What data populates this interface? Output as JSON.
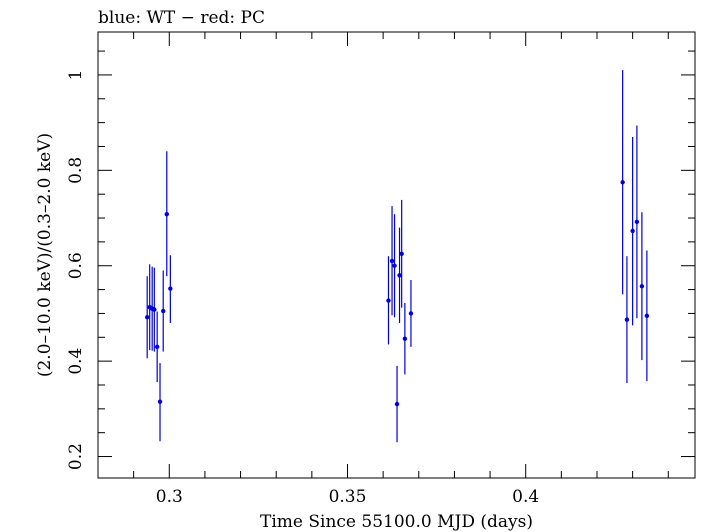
{
  "chart_data": {
    "type": "scatter",
    "title": "blue: WT − red: PC",
    "xlabel": "Time Since 55100.0 MJD (days)",
    "ylabel": "(2.0–10.0 keV)/(0.3–2.0 keV)",
    "xlim": [
      0.28,
      0.4475
    ],
    "ylim": [
      0.155,
      1.09
    ],
    "x_ticks": [
      0.3,
      0.35,
      0.4
    ],
    "x_tick_labels": [
      "0.3",
      "0.35",
      "0.4"
    ],
    "y_ticks": [
      0.2,
      0.4,
      0.6,
      0.8,
      1.0
    ],
    "y_tick_labels": [
      "0.2",
      "0.4",
      "0.6",
      "0.8",
      "1"
    ],
    "grid": false,
    "colors": {
      "WT": "#0000dd",
      "PC": "#dd0000",
      "axis": "#000000"
    },
    "series": [
      {
        "name": "WT",
        "points": [
          {
            "x": 0.2938,
            "y": 0.492,
            "ylo": 0.406,
            "yhi": 0.578
          },
          {
            "x": 0.2945,
            "y": 0.513,
            "ylo": 0.423,
            "yhi": 0.603
          },
          {
            "x": 0.2952,
            "y": 0.51,
            "ylo": 0.422,
            "yhi": 0.598
          },
          {
            "x": 0.2958,
            "y": 0.508,
            "ylo": 0.42,
            "yhi": 0.596
          },
          {
            "x": 0.2966,
            "y": 0.43,
            "ylo": 0.356,
            "yhi": 0.504
          },
          {
            "x": 0.2974,
            "y": 0.315,
            "ylo": 0.232,
            "yhi": 0.396
          },
          {
            "x": 0.2983,
            "y": 0.505,
            "ylo": 0.42,
            "yhi": 0.59
          },
          {
            "x": 0.2993,
            "y": 0.708,
            "ylo": 0.578,
            "yhi": 0.84
          },
          {
            "x": 0.3003,
            "y": 0.552,
            "ylo": 0.48,
            "yhi": 0.622
          },
          {
            "x": 0.3615,
            "y": 0.527,
            "ylo": 0.435,
            "yhi": 0.62
          },
          {
            "x": 0.3625,
            "y": 0.61,
            "ylo": 0.496,
            "yhi": 0.725
          },
          {
            "x": 0.3632,
            "y": 0.6,
            "ylo": 0.492,
            "yhi": 0.708
          },
          {
            "x": 0.3639,
            "y": 0.31,
            "ylo": 0.23,
            "yhi": 0.39
          },
          {
            "x": 0.3646,
            "y": 0.58,
            "ylo": 0.48,
            "yhi": 0.68
          },
          {
            "x": 0.3652,
            "y": 0.625,
            "ylo": 0.512,
            "yhi": 0.738
          },
          {
            "x": 0.3661,
            "y": 0.447,
            "ylo": 0.372,
            "yhi": 0.522
          },
          {
            "x": 0.3678,
            "y": 0.5,
            "ylo": 0.43,
            "yhi": 0.57
          },
          {
            "x": 0.4272,
            "y": 0.775,
            "ylo": 0.54,
            "yhi": 1.01
          },
          {
            "x": 0.4284,
            "y": 0.487,
            "ylo": 0.354,
            "yhi": 0.62
          },
          {
            "x": 0.43,
            "y": 0.673,
            "ylo": 0.475,
            "yhi": 0.87
          },
          {
            "x": 0.4312,
            "y": 0.692,
            "ylo": 0.49,
            "yhi": 0.894
          },
          {
            "x": 0.4326,
            "y": 0.557,
            "ylo": 0.402,
            "yhi": 0.712
          },
          {
            "x": 0.434,
            "y": 0.495,
            "ylo": 0.358,
            "yhi": 0.632
          }
        ]
      },
      {
        "name": "PC",
        "points": []
      }
    ]
  }
}
